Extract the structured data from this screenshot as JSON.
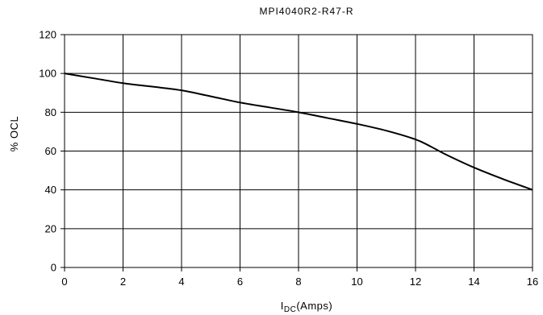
{
  "chart_data": {
    "type": "line",
    "title": "MPI4040R2-R47-R",
    "xlabel": {
      "main": "I",
      "sub": "DC",
      "rest": "(Amps)"
    },
    "ylabel": "% OCL",
    "xlim": [
      0,
      16
    ],
    "ylim": [
      0,
      120
    ],
    "xticks": [
      0,
      2,
      4,
      6,
      8,
      10,
      12,
      14,
      16
    ],
    "yticks": [
      0,
      20,
      40,
      60,
      80,
      100,
      120
    ],
    "grid": true,
    "series": [
      {
        "color": "#000000",
        "x": [
          0,
          1,
          2,
          3,
          4,
          5,
          6,
          7,
          8,
          9,
          10,
          11,
          12,
          12.5,
          13,
          14,
          15,
          16
        ],
        "y": [
          100,
          97.5,
          95,
          93.2,
          91.3,
          88.2,
          85,
          82.5,
          80,
          77,
          74,
          70.5,
          66,
          62.5,
          58.5,
          51.5,
          45.5,
          40
        ]
      }
    ]
  }
}
